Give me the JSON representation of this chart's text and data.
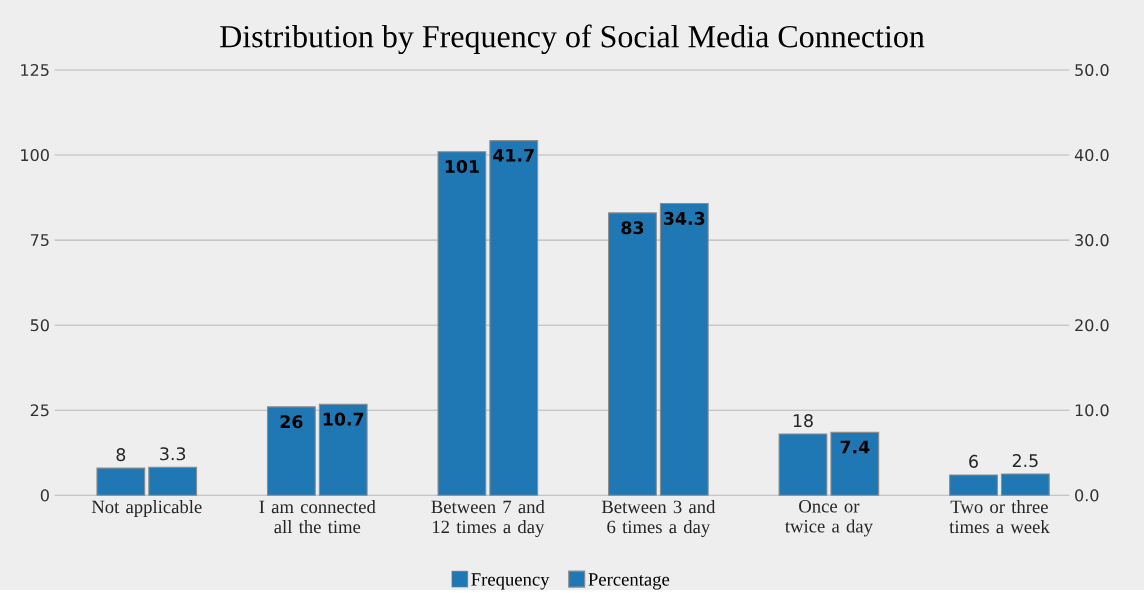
{
  "chart_data": {
    "type": "bar",
    "title": "Distribution by Frequency of Social Media Connection",
    "categories": [
      "Not applicable",
      "I am connected all the time",
      "Between 7 and 12 times a day",
      "Between 3 and 6 times a day",
      "Once or twice a day",
      "Two or three times a week"
    ],
    "series": [
      {
        "name": "Frequency",
        "color": "#1f77b4",
        "values": [
          8,
          26,
          101,
          83,
          18,
          6
        ]
      },
      {
        "name": "Percentage",
        "color": "#1f77b4",
        "axis": "y2",
        "values": [
          3.3,
          10.7,
          41.7,
          34.3,
          7.4,
          2.5
        ]
      }
    ],
    "ylim": [
      0,
      125
    ],
    "yticks": [
      0,
      25,
      50,
      75,
      100,
      125
    ],
    "y2lim": [
      0,
      50
    ],
    "y2ticks": [
      {
        "value": 0,
        "label": "0.0"
      },
      {
        "value": 10,
        "label": "10.0"
      },
      {
        "value": 20,
        "label": "20.0"
      },
      {
        "value": 30,
        "label": "30.0"
      },
      {
        "value": 40,
        "label": "40.0"
      },
      {
        "value": 50,
        "label": "50.0"
      }
    ],
    "data_labels": true,
    "grid": "y",
    "legend": "bottom"
  }
}
